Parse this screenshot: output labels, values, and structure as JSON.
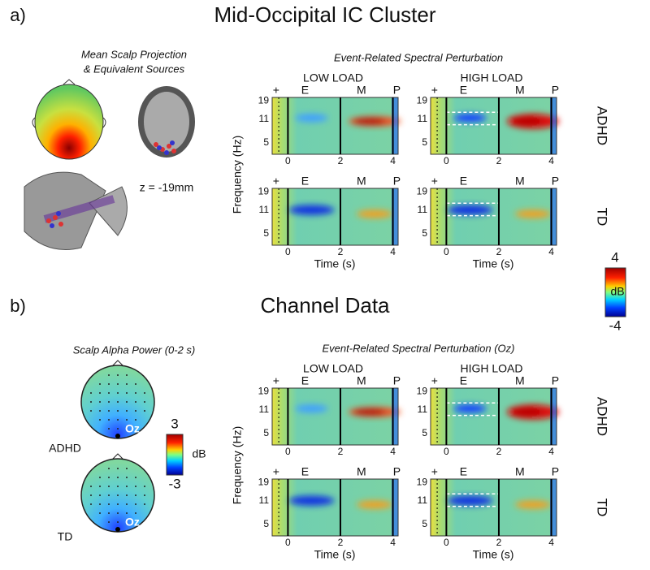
{
  "panel_a": {
    "label": "a)",
    "title": "Mid-Occipital IC Cluster",
    "scalp_title": [
      "Mean Scalp Projection",
      "& Equivalent Sources"
    ],
    "z_label": "z = -19mm",
    "ersp_title": "Event-Related Spectral Perturbation",
    "columns": [
      "LOW LOAD",
      "HIGH LOAD"
    ],
    "rows": [
      "ADHD",
      "TD"
    ],
    "y_label": "Frequency (Hz)",
    "x_label": "Time (s)",
    "yticks": [
      19,
      11,
      5
    ],
    "xticks": [
      0,
      2,
      4
    ],
    "events": [
      "+",
      "E",
      "M",
      "P"
    ],
    "colorbar": {
      "max": 4,
      "min": -4,
      "unit": "dB"
    }
  },
  "panel_b": {
    "label": "b)",
    "title": "Channel Data",
    "scalp_title": "Scalp Alpha Power (0-2 s)",
    "scalp_rows": [
      "ADHD",
      "TD"
    ],
    "electrode": "Oz",
    "ersp_title": "Event-Related Spectral Perturbation (Oz)",
    "columns": [
      "LOW LOAD",
      "HIGH LOAD"
    ],
    "rows": [
      "ADHD",
      "TD"
    ],
    "y_label": "Frequency (Hz)",
    "x_label": "Time (s)",
    "yticks": [
      19,
      11,
      5
    ],
    "xticks": [
      0,
      2,
      4
    ],
    "events": [
      "+",
      "E",
      "M",
      "P"
    ],
    "colorbar": {
      "max": 3,
      "min": -3,
      "unit": "dB"
    }
  }
}
